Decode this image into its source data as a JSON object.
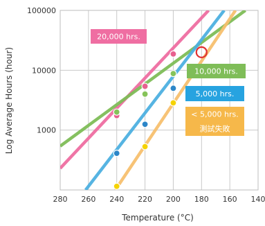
{
  "chart_data": {
    "type": "line",
    "xlabel": "Temperature (°C)",
    "ylabel": "Log Average Hours (hour)",
    "x_ticks": [
      "280",
      "260",
      "240",
      "220",
      "200",
      "180",
      "160",
      "140"
    ],
    "x_tick_values": [
      280,
      260,
      240,
      220,
      200,
      180,
      160,
      140
    ],
    "highlight_x_tick": "180",
    "y_ticks": [
      "100000",
      "10000",
      "1000"
    ],
    "y_tick_values": [
      100000,
      10000,
      1000
    ],
    "xlim": [
      280,
      140
    ],
    "ylim": [
      100,
      100000
    ],
    "yscale": "log",
    "grid": true,
    "series": [
      {
        "name": "20,000 hrs.",
        "color": "#ef6ea2",
        "points": [
          [
            240,
            1750
          ],
          [
            220,
            5400
          ],
          [
            200,
            18700
          ]
        ],
        "line": [
          [
            280,
            230
          ],
          [
            175,
            100000
          ]
        ]
      },
      {
        "name": "10,000 hrs.",
        "color": "#7fbd58",
        "points": [
          [
            240,
            2000
          ],
          [
            220,
            4000
          ],
          [
            200,
            8800
          ]
        ],
        "line": [
          [
            280,
            540
          ],
          [
            149,
            100000
          ]
        ]
      },
      {
        "name": "5,000 hrs.",
        "color": "#4db0e1",
        "points": [
          [
            240,
            410
          ],
          [
            220,
            1250
          ],
          [
            200,
            5000
          ]
        ],
        "line": [
          [
            262,
            100
          ],
          [
            164,
            100000
          ]
        ]
      },
      {
        "name": "< 5,000 hrs. 測試失敗",
        "color": "#f7c06f",
        "points": [
          [
            240,
            115
          ],
          [
            220,
            530
          ],
          [
            200,
            2850
          ]
        ],
        "line": [
          [
            241,
            100
          ],
          [
            156,
            100000
          ]
        ]
      }
    ],
    "highlight_point": {
      "x": 180,
      "y": 20000,
      "color": "#e03030"
    },
    "annotations": [
      {
        "lines": [
          "20,000 hrs."
        ],
        "color": "#ef6ea2"
      },
      {
        "lines": [
          "10,000 hrs."
        ],
        "color": "#7fbd58"
      },
      {
        "lines": [
          "5,000 hrs."
        ],
        "color": "#27a3e0"
      },
      {
        "lines": [
          "< 5,000 hrs.",
          "測試失敗"
        ],
        "color": "#f6b84a"
      }
    ],
    "point_marker_colors": {
      "#ef6ea2": "#e8608f",
      "#7fbd58": "#86c35a",
      "#4db0e1": "#2c86c8",
      "#f7c06f": "#f5d300"
    }
  }
}
